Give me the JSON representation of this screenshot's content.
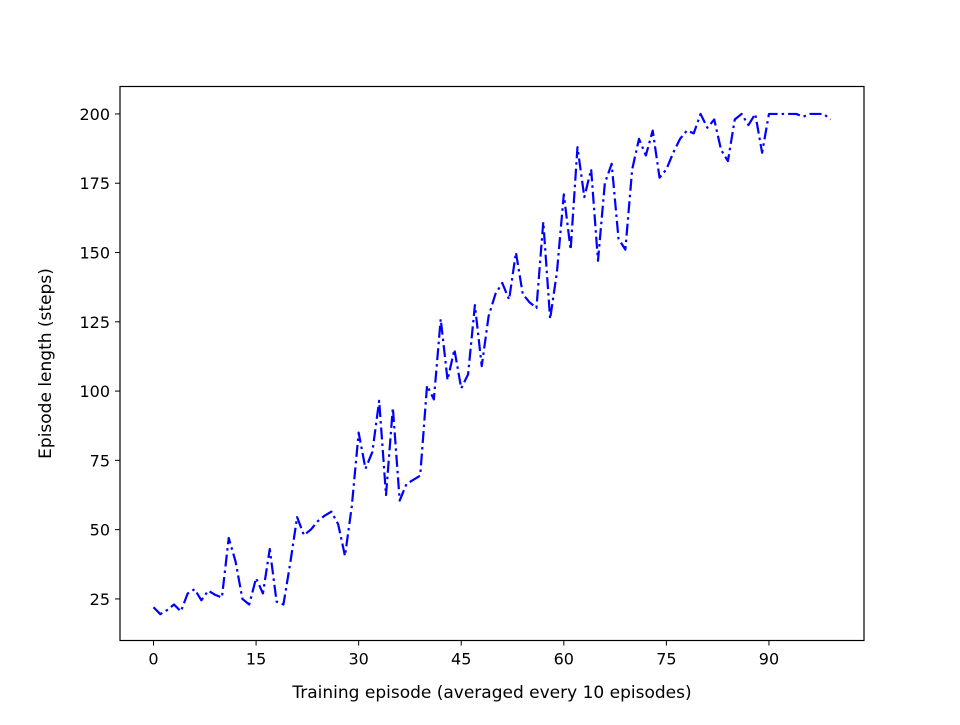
{
  "chart_data": {
    "type": "line",
    "title": "",
    "xlabel": "Training episode (averaged every 10 episodes)",
    "ylabel": "Episode length (steps)",
    "xlim": [
      -4.9,
      103.9
    ],
    "ylim": [
      10.0,
      209.9
    ],
    "xticks": [
      0,
      15,
      30,
      45,
      60,
      75,
      90
    ],
    "yticks": [
      25,
      50,
      75,
      100,
      125,
      150,
      175,
      200
    ],
    "grid": false,
    "line_color": "#0000ff",
    "line_style": "dashdot",
    "series": [
      {
        "x": [
          0,
          1,
          2,
          3,
          4,
          5,
          6,
          7,
          8,
          9,
          10,
          11,
          12,
          13,
          14,
          15,
          16,
          17,
          18,
          19,
          20,
          21,
          22,
          23,
          24,
          25,
          26,
          27,
          28,
          29,
          30,
          31,
          32,
          33,
          34,
          35,
          36,
          37,
          38,
          39,
          40,
          41,
          42,
          43,
          44,
          45,
          46,
          47,
          48,
          49,
          50,
          51,
          52,
          53,
          54,
          55,
          56,
          57,
          58,
          59,
          60,
          61,
          62,
          63,
          64,
          65,
          66,
          67,
          68,
          69,
          70,
          71,
          72,
          73,
          74,
          75,
          76,
          77,
          78,
          79,
          80,
          81,
          82,
          83,
          84,
          85,
          86,
          87,
          88,
          89,
          90,
          91,
          92,
          93,
          94,
          95,
          96,
          97,
          98,
          99
        ],
        "y": [
          22,
          19.5,
          21,
          23,
          20.5,
          27,
          28.5,
          24.5,
          28,
          26.5,
          25.5,
          47,
          38.5,
          25,
          23,
          32.5,
          27,
          43,
          24,
          23,
          38,
          54.5,
          48,
          50,
          53,
          55,
          56.5,
          52,
          40.5,
          58.5,
          85,
          72,
          78,
          96.5,
          62.5,
          94,
          60.5,
          66.5,
          68,
          69.5,
          102,
          97,
          126,
          104,
          115,
          101,
          106,
          131,
          109,
          127,
          135,
          139,
          133,
          150,
          135,
          132,
          130,
          161,
          126,
          143,
          171,
          151,
          188,
          170,
          180,
          147,
          175,
          182,
          155,
          151,
          180,
          191,
          185,
          194,
          177,
          180,
          186,
          191,
          194,
          193,
          200,
          195,
          198,
          187,
          183,
          198,
          200,
          196,
          200,
          186,
          200,
          200,
          200,
          200,
          200,
          199,
          200,
          200,
          200,
          198
        ]
      }
    ]
  }
}
